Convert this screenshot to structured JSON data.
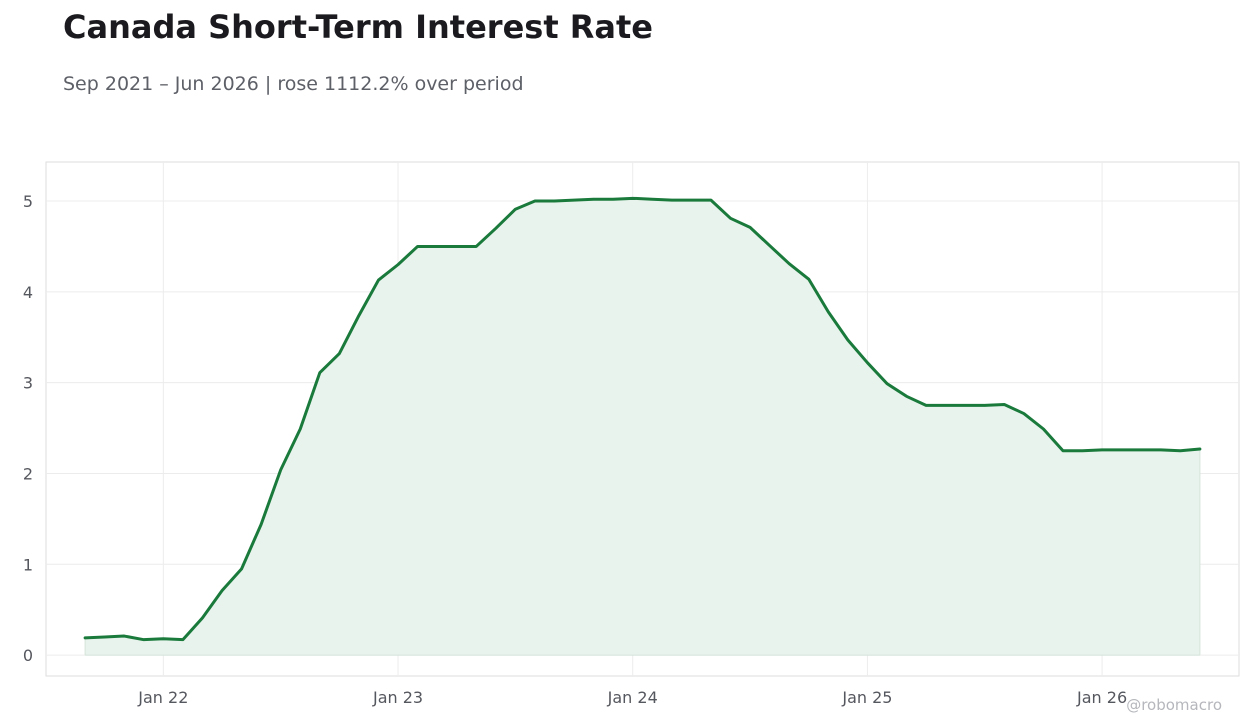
{
  "title": "Canada Short-Term Interest Rate",
  "subtitle": "Sep 2021 – Jun 2026 | rose 1112.2% over period",
  "watermark": "@robomacro",
  "colors": {
    "line": "#1a7a3c",
    "fill": "#e9f3ed",
    "grid": "#ececec",
    "frame": "#dedede"
  },
  "chart_data": {
    "type": "area",
    "title": "Canada Short-Term Interest Rate",
    "subtitle": "Sep 2021 – Jun 2026 | rose 1112.2% over period",
    "xlabel": "",
    "ylabel": "",
    "x_ticks": [
      "Jan 22",
      "Jan 23",
      "Jan 24",
      "Jan 25",
      "Jan 26"
    ],
    "y_ticks": [
      0,
      1,
      2,
      3,
      4,
      5
    ],
    "ylim": [
      -0.23,
      5.43
    ],
    "xlim": [
      "2021-07",
      "2026-08"
    ],
    "grid": true,
    "legend": "none",
    "series": [
      {
        "x": [
          "2021-09",
          "2021-10",
          "2021-11",
          "2021-12",
          "2022-01",
          "2022-02",
          "2022-03",
          "2022-04",
          "2022-05",
          "2022-06",
          "2022-07",
          "2022-08",
          "2022-09",
          "2022-10",
          "2022-11",
          "2022-12",
          "2023-01",
          "2023-02",
          "2023-03",
          "2023-04",
          "2023-05",
          "2023-06",
          "2023-07",
          "2023-08",
          "2023-09",
          "2023-10",
          "2023-11",
          "2023-12",
          "2024-01",
          "2024-02",
          "2024-03",
          "2024-04",
          "2024-05",
          "2024-06",
          "2024-07",
          "2024-08",
          "2024-09",
          "2024-10",
          "2024-11",
          "2024-12",
          "2025-01",
          "2025-02",
          "2025-03",
          "2025-04",
          "2025-05",
          "2025-06",
          "2025-07",
          "2025-08",
          "2025-09",
          "2025-10",
          "2025-11",
          "2025-12",
          "2026-01",
          "2026-02",
          "2026-03",
          "2026-04",
          "2026-05",
          "2026-06"
        ],
        "values": [
          0.19,
          0.2,
          0.21,
          0.17,
          0.18,
          0.17,
          0.41,
          0.71,
          0.95,
          1.44,
          2.04,
          2.49,
          3.11,
          3.32,
          3.74,
          4.13,
          4.3,
          4.5,
          4.5,
          4.5,
          4.5,
          4.7,
          4.91,
          5.0,
          5.0,
          5.01,
          5.02,
          5.02,
          5.03,
          5.02,
          5.01,
          5.01,
          5.01,
          4.81,
          4.71,
          4.51,
          4.31,
          4.14,
          3.78,
          3.47,
          3.22,
          2.99,
          2.85,
          2.75,
          2.75,
          2.75,
          2.75,
          2.76,
          2.66,
          2.49,
          2.25,
          2.25,
          2.26,
          2.26,
          2.26,
          2.26,
          2.25,
          2.27
        ]
      }
    ]
  }
}
